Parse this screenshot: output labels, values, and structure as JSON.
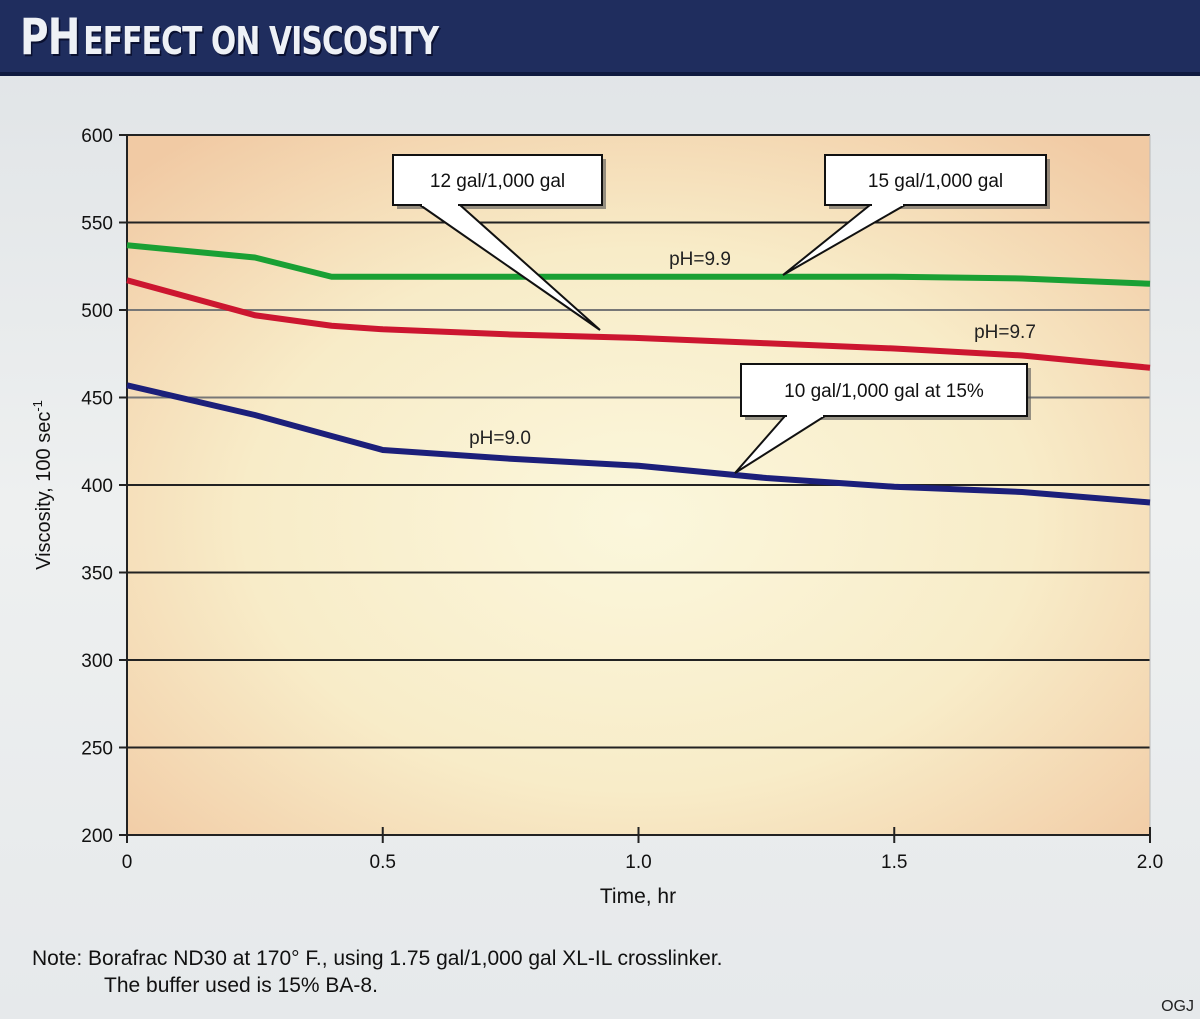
{
  "title": {
    "big": "PH",
    "rest": "EFFECT ON VISCOSITY"
  },
  "note": {
    "line1": "Note: Borafrac ND30 at 170° F., using 1.75 gal/1,000 gal XL-IL crosslinker.",
    "line2": "The buffer used is 15% BA-8."
  },
  "source": "OGJ",
  "chart_data": {
    "type": "line",
    "title": "PH effect on viscosity",
    "xlabel": "Time, hr",
    "ylabel": "Viscosity, 100 sec",
    "ylabel_superscript": "-1",
    "xlim": [
      0,
      2.0
    ],
    "ylim": [
      200,
      600
    ],
    "xticks": [
      "0",
      "0.5",
      "1.0",
      "1.5",
      "2.0"
    ],
    "xtick_values": [
      0,
      0.5,
      1.0,
      1.5,
      2.0
    ],
    "yticks": [
      200,
      250,
      300,
      350,
      400,
      450,
      500,
      550,
      600
    ],
    "grid": true,
    "x": [
      0,
      0.25,
      0.4,
      0.5,
      0.75,
      1.0,
      1.25,
      1.5,
      1.75,
      2.0
    ],
    "series": [
      {
        "label": "pH=9.9",
        "callout": "15 gal/1,000 gal",
        "color": "#1aa034",
        "values": [
          537,
          530,
          519,
          519,
          519,
          519,
          519,
          519,
          518,
          515
        ]
      },
      {
        "label": "pH=9.7",
        "callout": "12 gal/1,000 gal",
        "color": "#cc1630",
        "values": [
          517,
          497,
          491,
          489,
          486,
          484,
          481,
          478,
          474,
          467
        ]
      },
      {
        "label": "pH=9.0",
        "callout": "10 gal/1,000 gal at 15%",
        "color": "#1c1f7a",
        "values": [
          457,
          440,
          428,
          420,
          415,
          411,
          404,
          399,
          396,
          390
        ]
      }
    ]
  }
}
